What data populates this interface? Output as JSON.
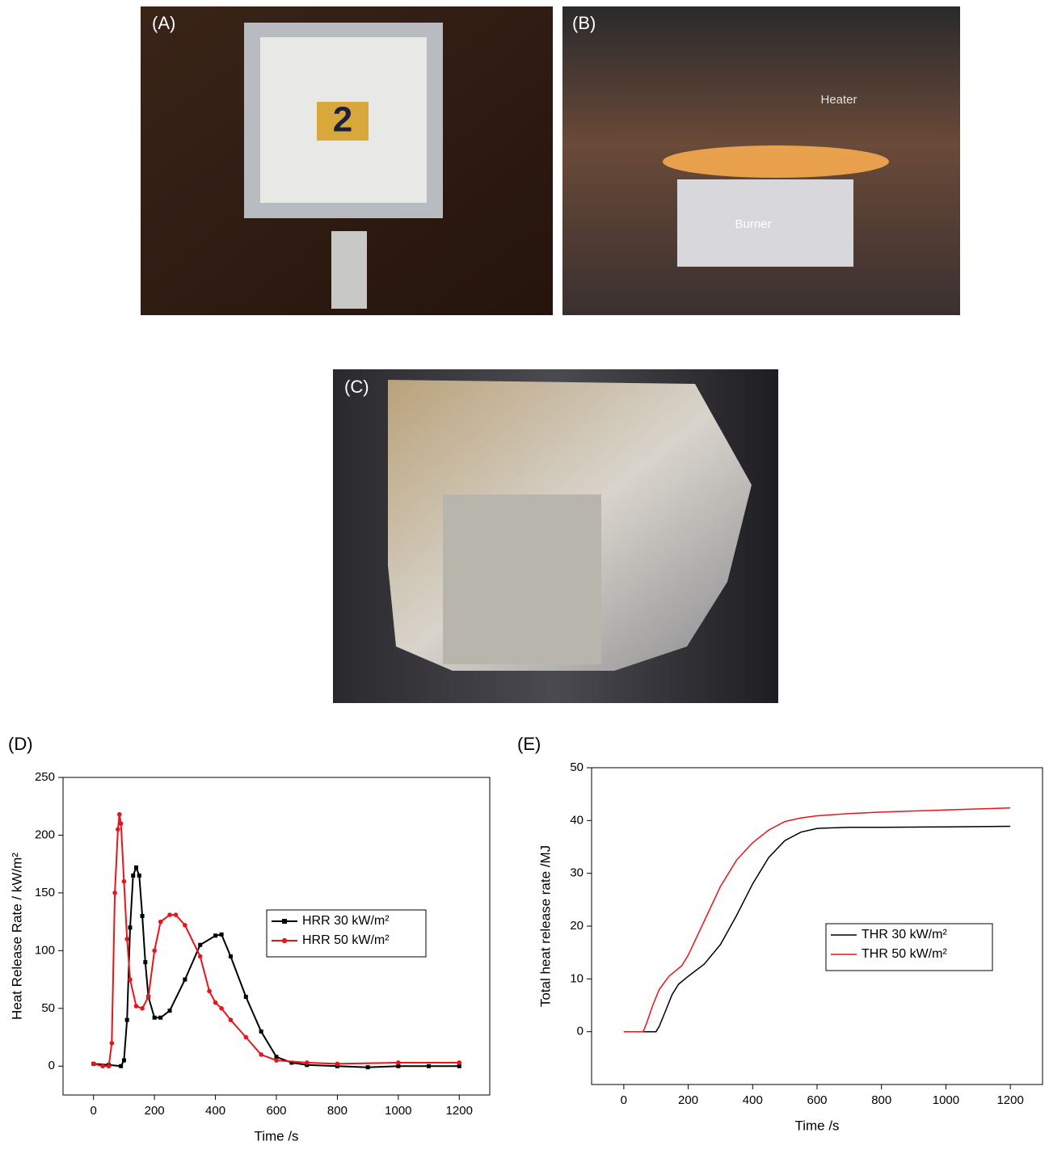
{
  "photos": [
    {
      "label": "(A)",
      "annotations": [
        "2"
      ]
    },
    {
      "label": "(B)",
      "annotations": [
        "Heater",
        "Burner"
      ]
    },
    {
      "label": "(C)"
    }
  ],
  "chart_data": [
    {
      "type": "line",
      "label": "(D)",
      "xlabel": "Time /s",
      "ylabel": "Heat Release Rate / kW/m²",
      "xlim": [
        -100,
        1300
      ],
      "xticks": [
        0,
        200,
        400,
        600,
        800,
        1000,
        1200
      ],
      "ylim": [
        -25,
        250
      ],
      "yticks": [
        0,
        50,
        100,
        150,
        200,
        250
      ],
      "legend": "center-right",
      "markers": true,
      "series": [
        {
          "name": "HRR 30 kW/m²",
          "color": "#000000",
          "marker": "square",
          "x": [
            0,
            50,
            90,
            100,
            110,
            120,
            130,
            140,
            150,
            160,
            170,
            180,
            200,
            220,
            250,
            300,
            350,
            400,
            420,
            450,
            500,
            550,
            600,
            650,
            700,
            800,
            900,
            1000,
            1100,
            1200
          ],
          "values": [
            2,
            1,
            0,
            5,
            40,
            120,
            165,
            172,
            165,
            130,
            90,
            60,
            42,
            42,
            48,
            75,
            105,
            113,
            114,
            95,
            60,
            30,
            8,
            3,
            1,
            0,
            -1,
            0,
            0,
            0
          ]
        },
        {
          "name": "HRR 50 kW/m²",
          "color": "#e8141c",
          "marker": "circle",
          "x": [
            0,
            30,
            50,
            60,
            70,
            80,
            85,
            90,
            100,
            110,
            120,
            140,
            160,
            180,
            200,
            220,
            250,
            270,
            300,
            350,
            380,
            400,
            420,
            450,
            500,
            550,
            600,
            700,
            800,
            1000,
            1200
          ],
          "values": [
            2,
            0,
            0,
            20,
            150,
            205,
            218,
            210,
            160,
            110,
            75,
            52,
            50,
            60,
            100,
            125,
            131,
            131,
            122,
            95,
            65,
            55,
            50,
            40,
            25,
            10,
            5,
            3,
            2,
            3,
            3
          ]
        }
      ]
    },
    {
      "type": "line",
      "label": "(E)",
      "xlabel": "Time /s",
      "ylabel": "Total heat release rate /MJ",
      "xlim": [
        -100,
        1300
      ],
      "xticks": [
        0,
        200,
        400,
        600,
        800,
        1000,
        1200
      ],
      "ylim": [
        -10,
        50
      ],
      "yticks": [
        0,
        10,
        20,
        30,
        40,
        50
      ],
      "legend": "center-right",
      "markers": false,
      "series": [
        {
          "name": "THR 30 kW/m²",
          "color": "#000000",
          "x": [
            0,
            100,
            110,
            130,
            150,
            170,
            200,
            250,
            300,
            350,
            400,
            450,
            500,
            550,
            600,
            700,
            800,
            1000,
            1200
          ],
          "values": [
            0,
            0,
            1,
            4,
            7,
            9,
            10.5,
            12.8,
            16.5,
            22,
            28,
            33,
            36.2,
            37.8,
            38.5,
            38.7,
            38.7,
            38.8,
            38.9
          ]
        },
        {
          "name": "THR 50 kW/m²",
          "color": "#e8141c",
          "x": [
            0,
            60,
            70,
            90,
            110,
            140,
            180,
            200,
            250,
            300,
            350,
            400,
            450,
            500,
            550,
            600,
            700,
            800,
            1000,
            1200
          ],
          "values": [
            0,
            0,
            1.5,
            5,
            8,
            10.5,
            12.5,
            14.5,
            21,
            27.5,
            32.5,
            35.8,
            38.2,
            39.8,
            40.5,
            40.9,
            41.3,
            41.6,
            42,
            42.4
          ]
        }
      ]
    }
  ]
}
